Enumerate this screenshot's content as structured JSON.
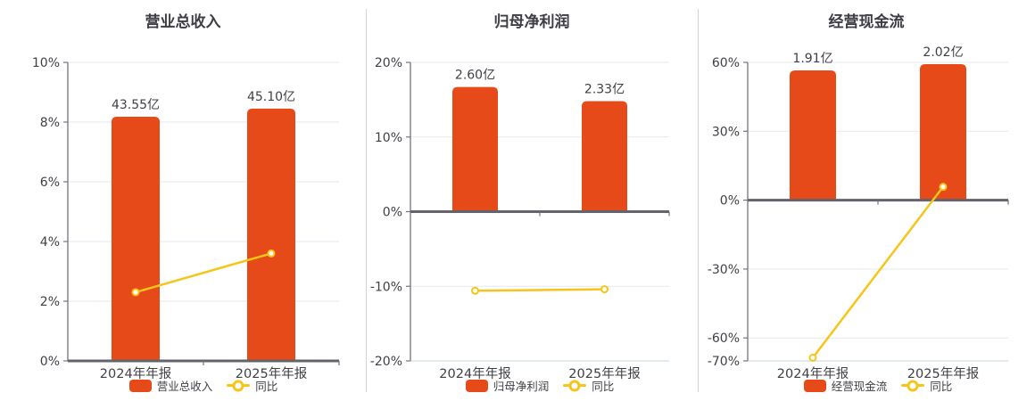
{
  "colors": {
    "bar": "#e64a19",
    "line": "#f6c51a",
    "marker_fill": "#ffffff",
    "grid": "#e2e9f2",
    "grid_bottom": "#c9d6e3",
    "axis": "#73737c",
    "zero_line": "#63636b",
    "text": "#3f3f46",
    "divider": "#d4d4d4"
  },
  "chart_data": [
    {
      "type": "bar",
      "title": "营业总收入",
      "categories": [
        "2024年年报",
        "2025年年报"
      ],
      "bar_series": {
        "name": "营业总收入",
        "value_labels": [
          "43.55亿",
          "45.10亿"
        ],
        "values_yi": [
          43.55,
          45.1
        ],
        "plotted_height_on_pct_axis": [
          8.18,
          8.45
        ]
      },
      "line_series": {
        "name": "同比",
        "values_pct": [
          2.3,
          3.6
        ]
      },
      "y_axis": {
        "min": 0,
        "max": 10,
        "ticks": [
          10,
          8,
          6,
          4,
          2,
          0
        ],
        "unit": "%"
      },
      "legend_position": "bottom",
      "grid": true
    },
    {
      "type": "bar",
      "title": "归母净利润",
      "categories": [
        "2024年年报",
        "2025年年报"
      ],
      "bar_series": {
        "name": "归母净利润",
        "value_labels": [
          "2.60亿",
          "2.33亿"
        ],
        "values_yi": [
          2.6,
          2.33
        ],
        "plotted_height_on_pct_axis": [
          16.7,
          14.8
        ]
      },
      "line_series": {
        "name": "同比",
        "values_pct": [
          -10.6,
          -10.4
        ]
      },
      "y_axis": {
        "min": -20,
        "max": 20,
        "ticks": [
          20,
          10,
          0,
          -10,
          -20
        ],
        "unit": "%"
      },
      "legend_position": "bottom",
      "grid": true
    },
    {
      "type": "bar",
      "title": "经营现金流",
      "categories": [
        "2024年年报",
        "2025年年报"
      ],
      "bar_series": {
        "name": "经营现金流",
        "value_labels": [
          "1.91亿",
          "2.02亿"
        ],
        "values_yi": [
          1.91,
          2.02
        ],
        "plotted_height_on_pct_axis": [
          56.5,
          59.2
        ]
      },
      "line_series": {
        "name": "同比",
        "values_pct": [
          -68.6,
          5.8
        ]
      },
      "y_axis": {
        "min": -70,
        "max": 60,
        "ticks": [
          60,
          30,
          0,
          -30,
          -60,
          -70
        ],
        "unit": "%"
      },
      "legend_position": "bottom",
      "grid": true
    }
  ]
}
